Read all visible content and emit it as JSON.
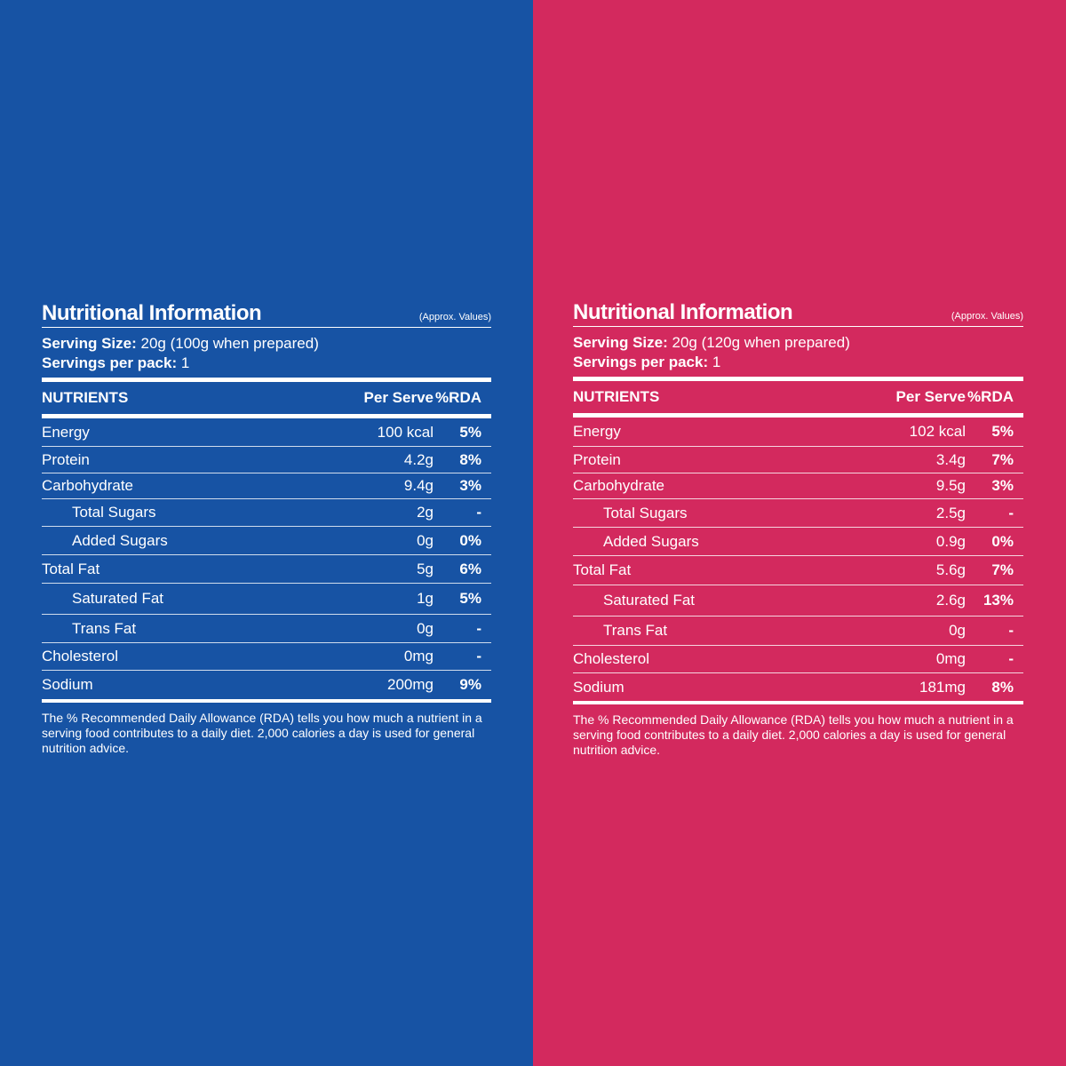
{
  "panels": [
    {
      "title": "Nutritional Information",
      "approx": "(Approx. Values)",
      "serving_size_label": "Serving Size:",
      "serving_size_value": " 20g (100g when prepared)",
      "servings_label": "Servings per pack:",
      "servings_value": " 1",
      "col_nutrients": "NUTRIENTS",
      "col_per_serve": "Per Serve",
      "col_rda": "%RDA",
      "rows": [
        {
          "name": "Energy",
          "value": "100 kcal",
          "rda": "5%",
          "indent": false
        },
        {
          "name": "Protein",
          "value": "4.2g",
          "rda": "8%",
          "indent": false
        },
        {
          "name": "Carbohydrate",
          "value": "9.4g",
          "rda": "3%",
          "indent": false
        },
        {
          "name": "Total Sugars",
          "value": "2g",
          "rda": "-",
          "indent": true
        },
        {
          "name": "Added Sugars",
          "value": "0g",
          "rda": "0%",
          "indent": true
        },
        {
          "name": "Total Fat",
          "value": "5g",
          "rda": "6%",
          "indent": false
        },
        {
          "name": "Saturated Fat",
          "value": "1g",
          "rda": "5%",
          "indent": true
        },
        {
          "name": "Trans Fat",
          "value": "0g",
          "rda": "-",
          "indent": true
        },
        {
          "name": "Cholesterol",
          "value": "0mg",
          "rda": "-",
          "indent": false
        },
        {
          "name": "Sodium",
          "value": "200mg",
          "rda": "9%",
          "indent": false
        }
      ],
      "footnote": "The % Recommended Daily Allowance (RDA) tells you how much a nutrient in a serving food contributes to a daily diet. 2,000 calories a day is used for general nutrition advice."
    },
    {
      "title": "Nutritional Information",
      "approx": "(Approx. Values)",
      "serving_size_label": "Serving Size:",
      "serving_size_value": " 20g (120g when prepared)",
      "servings_label": "Servings per pack:",
      "servings_value": " 1",
      "col_nutrients": "NUTRIENTS",
      "col_per_serve": "Per Serve",
      "col_rda": "%RDA",
      "rows": [
        {
          "name": "Energy",
          "value": "102 kcal",
          "rda": "5%",
          "indent": false
        },
        {
          "name": "Protein",
          "value": "3.4g",
          "rda": "7%",
          "indent": false
        },
        {
          "name": "Carbohydrate",
          "value": "9.5g",
          "rda": "3%",
          "indent": false
        },
        {
          "name": "Total Sugars",
          "value": "2.5g",
          "rda": "-",
          "indent": true
        },
        {
          "name": "Added Sugars",
          "value": "0.9g",
          "rda": "0%",
          "indent": true
        },
        {
          "name": "Total Fat",
          "value": "5.6g",
          "rda": "7%",
          "indent": false
        },
        {
          "name": "Saturated Fat",
          "value": "2.6g",
          "rda": "13%",
          "indent": true
        },
        {
          "name": "Trans Fat",
          "value": "0g",
          "rda": "-",
          "indent": true
        },
        {
          "name": "Cholesterol",
          "value": "0mg",
          "rda": "-",
          "indent": false
        },
        {
          "name": "Sodium",
          "value": "181mg",
          "rda": "8%",
          "indent": false
        }
      ],
      "footnote": "The % Recommended Daily Allowance (RDA) tells you how much a nutrient in a serving food contributes to a daily diet. 2,000 calories a day is used for general nutrition advice."
    }
  ],
  "colors": {
    "left_bg": "#1753a4",
    "right_bg": "#d3295e",
    "text": "#ffffff"
  }
}
